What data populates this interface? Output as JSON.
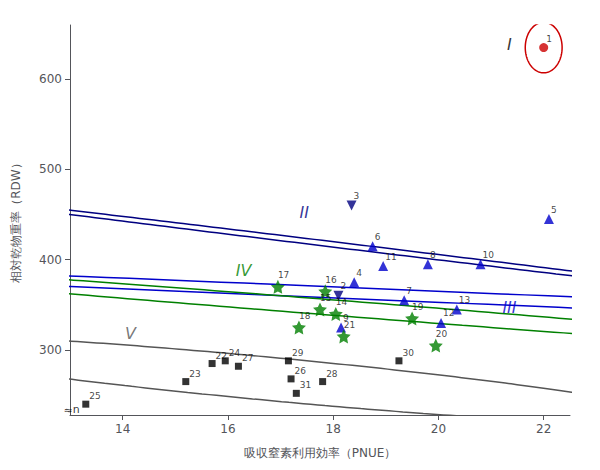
{
  "chart_data": {
    "type": "scatter",
    "xlabel": "吸収窒素利用効率（PNUE）",
    "ylabel": "相対乾物重率（RDW）",
    "xlim": [
      13.0,
      22.5
    ],
    "ylim": [
      228,
      660
    ],
    "xticks": [
      14,
      16,
      18,
      20,
      22
    ],
    "yticks": [
      300,
      400,
      500,
      600
    ],
    "grid": false,
    "series": [
      {
        "color": "#cc0000",
        "marker": "circle",
        "labels": [
          "1"
        ],
        "x": [
          22.0
        ],
        "values": [
          635
        ]
      },
      {
        "color": "#000080",
        "marker": "triangle_down",
        "labels": [
          "2",
          "3"
        ],
        "x": [
          18.1,
          18.35
        ],
        "values": [
          360,
          460
        ]
      },
      {
        "color": "#0000cc",
        "marker": "triangle_up",
        "labels": [
          "4",
          "5",
          "6",
          "7",
          "8",
          "9",
          "10",
          "11",
          "12",
          "13"
        ],
        "x": [
          18.4,
          22.1,
          18.75,
          19.35,
          19.8,
          18.15,
          20.8,
          18.95,
          20.05,
          20.35
        ],
        "values": [
          375,
          445,
          415,
          355,
          395,
          325,
          395,
          393,
          330,
          345
        ]
      },
      {
        "color": "#008000",
        "marker": "star",
        "labels": [
          "14",
          "15",
          "16",
          "17",
          "18",
          "19",
          "20",
          "21"
        ],
        "x": [
          18.05,
          17.75,
          17.85,
          16.95,
          17.35,
          19.5,
          19.95,
          18.2
        ],
        "values": [
          340,
          345,
          365,
          370,
          325,
          335,
          305,
          315
        ]
      },
      {
        "color": "#000000",
        "marker": "square",
        "labels": [
          "22",
          "23",
          "24",
          "25",
          "26",
          "27",
          "28",
          "29",
          "30",
          "31"
        ],
        "x": [
          15.7,
          15.2,
          15.95,
          13.3,
          17.2,
          16.2,
          17.8,
          17.15,
          19.25,
          17.3
        ],
        "values": [
          285,
          265,
          288,
          240,
          268,
          282,
          265,
          288,
          288,
          252
        ]
      }
    ],
    "ellipses": [
      {
        "cx": 22.0,
        "cy": 635,
        "rx": 0.35,
        "ry": 28,
        "angle": 0,
        "color": "#cc0000"
      },
      {
        "cx": 18.28,
        "cy": 415,
        "rx": 0.42,
        "ry": 62,
        "angle": 8,
        "color": "#000080"
      },
      {
        "cx": 20.4,
        "cy": 358,
        "rx": 2.3,
        "ry": 68,
        "angle": 22,
        "color": "#0000cc"
      },
      {
        "cx": 18.0,
        "cy": 347,
        "rx": 1.8,
        "ry": 55,
        "angle": 12,
        "color": "#008000"
      },
      {
        "cx": 16.8,
        "cy": 268,
        "rx": 3.8,
        "ry": 50,
        "angle": 8,
        "color": "#555555"
      }
    ],
    "annotations": [
      {
        "text": "I",
        "x": 21.35,
        "y": 638,
        "color": "#000000"
      },
      {
        "text": "II",
        "x": 17.45,
        "y": 452,
        "color": "#000080"
      },
      {
        "text": "III",
        "x": 21.35,
        "y": 347,
        "color": "#0000cc"
      },
      {
        "text": "IV",
        "x": 16.3,
        "y": 388,
        "color": "#008000"
      },
      {
        "text": "V",
        "x": 14.15,
        "y": 318,
        "color": "#555555"
      }
    ],
    "axis_break": [
      {
        "text": "≈",
        "x": 13.05,
        "y": 233,
        "color": "#000000"
      },
      {
        "text": "n",
        "x": 13.05,
        "y": 228,
        "color": "#000000"
      }
    ]
  }
}
